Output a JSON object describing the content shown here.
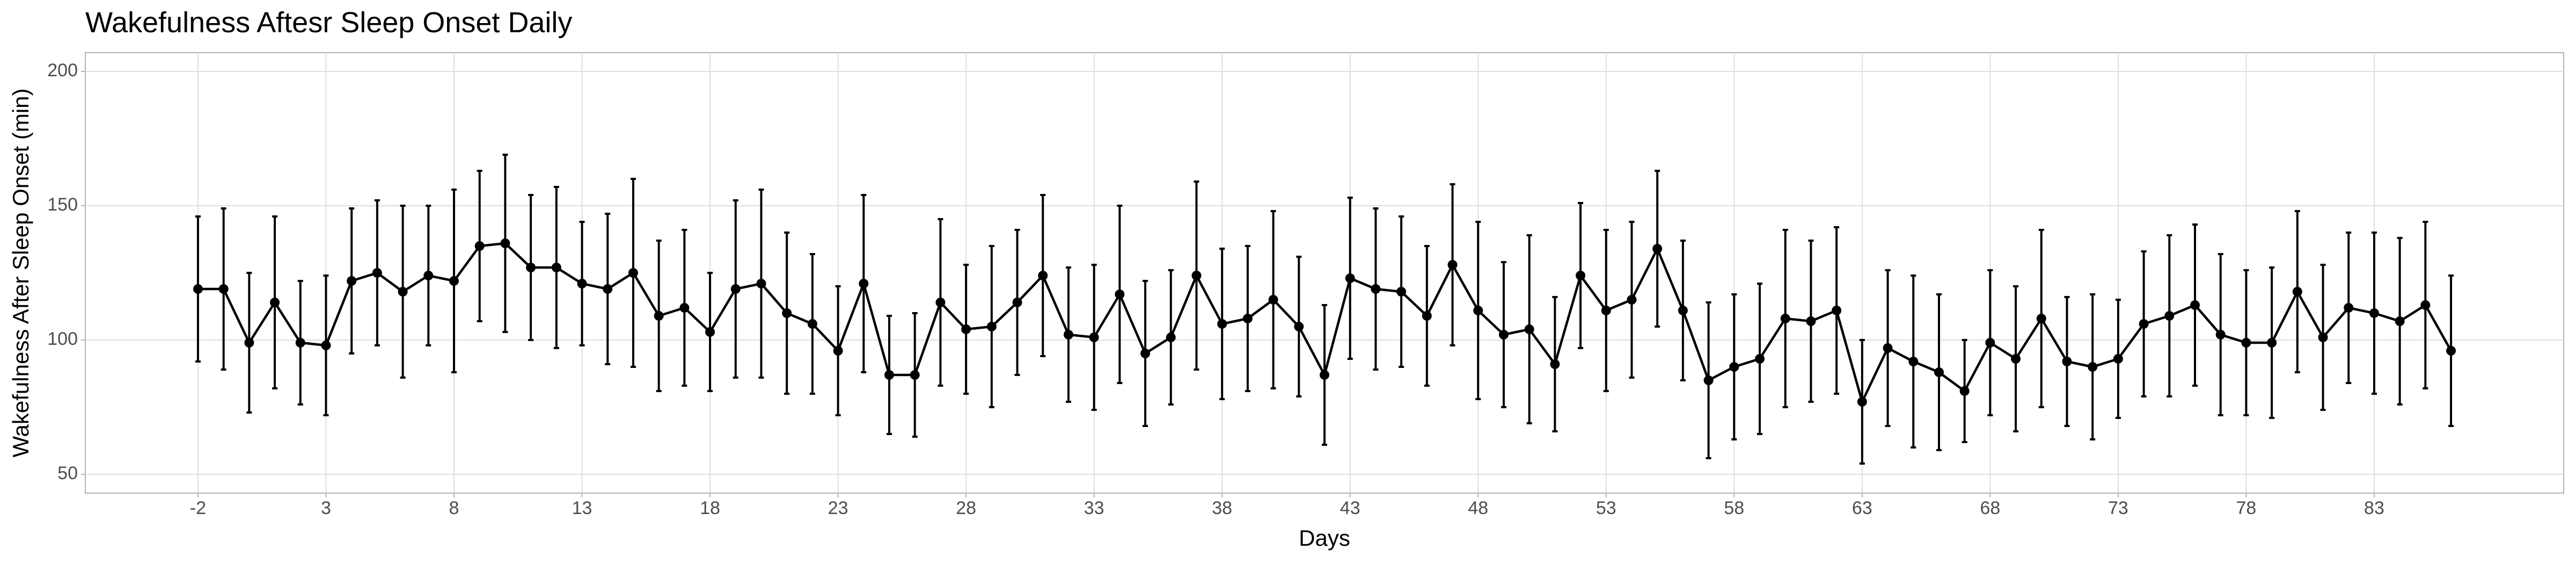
{
  "chart_data": {
    "type": "errorbar",
    "title": "Wakefulness Aftesr Sleep Onset Daily",
    "x_label": "Days",
    "y_label": "Wakefulness After Sleep Onset (min)",
    "x": [
      -2,
      -1,
      0,
      1,
      2,
      3,
      4,
      5,
      6,
      7,
      8,
      9,
      10,
      11,
      12,
      13,
      14,
      15,
      16,
      17,
      18,
      19,
      20,
      21,
      22,
      23,
      24,
      25,
      26,
      27,
      28,
      29,
      30,
      31,
      32,
      33,
      34,
      35,
      36,
      37,
      38,
      39,
      40,
      41,
      42,
      43,
      44,
      45,
      46,
      47,
      48,
      49,
      50,
      51,
      52,
      53,
      54,
      55,
      56,
      57,
      58,
      59,
      60,
      61,
      62,
      63,
      64,
      65,
      66,
      67,
      68,
      69,
      70,
      71,
      72,
      73,
      74,
      75,
      76,
      77,
      78,
      79,
      80,
      81,
      82,
      83,
      84,
      85,
      86
    ],
    "values": [
      119,
      119,
      99,
      114,
      99,
      98,
      122,
      125,
      118,
      124,
      122,
      135,
      136,
      127,
      127,
      121,
      119,
      125,
      109,
      112,
      103,
      119,
      121,
      110,
      106,
      96,
      121,
      87,
      87,
      114,
      104,
      105,
      114,
      124,
      102,
      101,
      117,
      95,
      101,
      124,
      106,
      108,
      115,
      105,
      87,
      123,
      119,
      118,
      109,
      128,
      111,
      102,
      104,
      91,
      124,
      111,
      115,
      134,
      111,
      85,
      90,
      93,
      108,
      107,
      111,
      77,
      97,
      92,
      88,
      81,
      99,
      93,
      108,
      92,
      90,
      93,
      106,
      109,
      113,
      102,
      99,
      99,
      118,
      101,
      112,
      110,
      107,
      113,
      96
    ],
    "errors": [
      27,
      30,
      26,
      32,
      23,
      26,
      27,
      27,
      32,
      26,
      34,
      28,
      33,
      27,
      30,
      23,
      28,
      35,
      28,
      29,
      22,
      33,
      35,
      30,
      26,
      24,
      33,
      22,
      23,
      31,
      24,
      30,
      27,
      30,
      25,
      27,
      33,
      27,
      25,
      35,
      28,
      27,
      33,
      26,
      26,
      30,
      30,
      28,
      26,
      30,
      33,
      27,
      35,
      25,
      27,
      30,
      29,
      29,
      26,
      29,
      27,
      28,
      33,
      30,
      31,
      23,
      29,
      32,
      29,
      19,
      27,
      27,
      33,
      24,
      27,
      22,
      27,
      30,
      30,
      30,
      27,
      28,
      30,
      27,
      28,
      30,
      31,
      31,
      28
    ],
    "color": "#000000",
    "xlim": [
      -6.4,
      90.4
    ],
    "xticks": [
      -2,
      3,
      8,
      13,
      18,
      23,
      28,
      33,
      38,
      43,
      48,
      53,
      58,
      63,
      68,
      73,
      78,
      83
    ],
    "ylim": [
      43,
      207
    ],
    "yticks": [
      50,
      100,
      150,
      200
    ],
    "grid": true
  }
}
